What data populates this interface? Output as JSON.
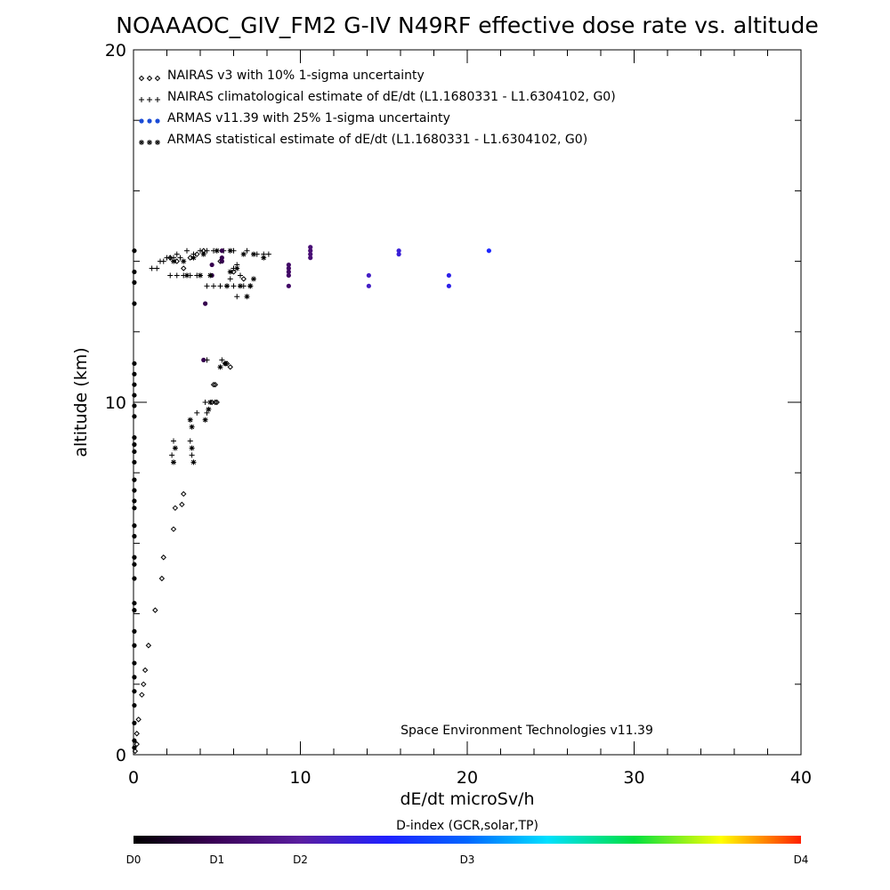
{
  "chart_data": {
    "type": "scatter",
    "title": "NOAAAOC_GIV_FM2 G-IV   N49RF  effective dose rate vs. altitude",
    "xlabel": "dE/dt microSv/h",
    "ylabel": "altitude (km)",
    "xlim": [
      0,
      40
    ],
    "ylim": [
      0,
      20
    ],
    "x_ticks": [
      "0",
      "10",
      "20",
      "30",
      "40"
    ],
    "y_ticks": [
      "0",
      "10",
      "20"
    ],
    "legend_position": "top-left",
    "legend": [
      {
        "symbol": "◇◇◇",
        "label": "NAIRAS v3 with 10% 1-sigma uncertainty"
      },
      {
        "symbol": "+++",
        "label": "NAIRAS climatological estimate of dE/dt (L1.1680331 - L1.6304102, G0)"
      },
      {
        "symbol": "●●●",
        "label": "ARMAS v11.39 with 25% 1-sigma uncertainty"
      },
      {
        "symbol": "***",
        "label": "ARMAS statistical estimate of dE/dt (L1.1680331 - L1.6304102, G0)"
      }
    ],
    "annotation": "Space Environment Technologies v11.39",
    "colorbar": {
      "title": "D-index (GCR,solar,TP)",
      "labels": [
        {
          "text": "D0",
          "value": 0
        },
        {
          "text": "D1",
          "value": 0.25
        },
        {
          "text": "D2",
          "value": 0.5
        },
        {
          "text": "D3",
          "value": 1.0
        },
        {
          "text": "D4",
          "value": 2.0
        }
      ],
      "range": [
        0,
        2
      ]
    },
    "series": [
      {
        "name": "NAIRAS v3 with 10% 1-sigma uncertainty",
        "marker": "diamond",
        "points": [
          [
            0.1,
            0.1
          ],
          [
            0.2,
            0.3
          ],
          [
            0.2,
            0.6
          ],
          [
            0.3,
            1.0
          ],
          [
            0.5,
            1.7
          ],
          [
            0.6,
            2.0
          ],
          [
            0.7,
            2.4
          ],
          [
            0.9,
            3.1
          ],
          [
            1.3,
            4.1
          ],
          [
            1.7,
            5.0
          ],
          [
            1.8,
            5.6
          ],
          [
            2.4,
            6.4
          ],
          [
            2.5,
            7.0
          ],
          [
            2.9,
            7.1
          ],
          [
            3.0,
            7.4
          ],
          [
            4.7,
            10.0
          ],
          [
            4.9,
            10.0
          ],
          [
            5.0,
            10.0
          ],
          [
            4.8,
            10.5
          ],
          [
            4.9,
            10.5
          ],
          [
            5.5,
            11.1
          ],
          [
            5.6,
            11.1
          ],
          [
            5.8,
            11.0
          ],
          [
            2.2,
            14.1
          ],
          [
            2.6,
            14.0
          ],
          [
            3.0,
            13.8
          ],
          [
            3.4,
            14.1
          ],
          [
            3.8,
            14.2
          ],
          [
            4.2,
            14.3
          ],
          [
            5.2,
            14.0
          ],
          [
            6.0,
            13.7
          ],
          [
            6.6,
            13.5
          ]
        ]
      },
      {
        "name": "NAIRAS climatological estimate of dE/dt (L1.1680331 - L1.6304102, G0)",
        "marker": "plus",
        "points": [
          [
            2.3,
            8.5
          ],
          [
            2.4,
            8.9
          ],
          [
            3.4,
            8.9
          ],
          [
            3.5,
            8.5
          ],
          [
            3.8,
            9.7
          ],
          [
            4.4,
            9.7
          ],
          [
            4.3,
            10.0
          ],
          [
            4.4,
            11.2
          ],
          [
            5.3,
            11.2
          ],
          [
            1.1,
            13.8
          ],
          [
            1.4,
            13.8
          ],
          [
            1.6,
            14.0
          ],
          [
            1.8,
            14.0
          ],
          [
            2.0,
            14.1
          ],
          [
            2.2,
            14.1
          ],
          [
            2.4,
            14.1
          ],
          [
            2.6,
            14.2
          ],
          [
            2.8,
            14.1
          ],
          [
            3.2,
            14.3
          ],
          [
            3.6,
            14.2
          ],
          [
            4.0,
            14.3
          ],
          [
            4.4,
            14.3
          ],
          [
            4.8,
            14.3
          ],
          [
            5.4,
            14.3
          ],
          [
            6.0,
            14.3
          ],
          [
            6.8,
            14.3
          ],
          [
            7.4,
            14.2
          ],
          [
            7.8,
            14.2
          ],
          [
            8.1,
            14.2
          ],
          [
            2.2,
            13.6
          ],
          [
            2.6,
            13.6
          ],
          [
            3.0,
            13.6
          ],
          [
            3.4,
            13.6
          ],
          [
            3.8,
            13.6
          ],
          [
            4.4,
            13.3
          ],
          [
            4.8,
            13.3
          ],
          [
            5.2,
            13.3
          ],
          [
            5.6,
            13.3
          ],
          [
            6.0,
            13.3
          ],
          [
            6.6,
            13.3
          ],
          [
            7.0,
            13.3
          ],
          [
            6.0,
            13.8
          ],
          [
            6.4,
            13.6
          ],
          [
            6.2,
            13.9
          ],
          [
            5.8,
            13.5
          ],
          [
            6.2,
            13.0
          ]
        ]
      },
      {
        "name": "ARMAS v11.39 with 25% 1-sigma uncertainty",
        "marker": "circle",
        "points": [
          [
            0.05,
            0.2
          ],
          [
            0.05,
            0.4
          ],
          [
            0.05,
            0.9
          ],
          [
            0.05,
            1.4
          ],
          [
            0.05,
            1.8
          ],
          [
            0.05,
            2.2
          ],
          [
            0.05,
            2.6
          ],
          [
            0.05,
            3.1
          ],
          [
            0.05,
            3.5
          ],
          [
            0.05,
            4.1
          ],
          [
            0.05,
            4.3
          ],
          [
            0.05,
            5.0
          ],
          [
            0.05,
            5.4
          ],
          [
            0.05,
            5.6
          ],
          [
            0.05,
            6.2
          ],
          [
            0.05,
            6.5
          ],
          [
            0.05,
            7.0
          ],
          [
            0.05,
            7.2
          ],
          [
            0.05,
            7.5
          ],
          [
            0.05,
            7.8
          ],
          [
            0.05,
            8.3
          ],
          [
            0.05,
            8.6
          ],
          [
            0.05,
            8.8
          ],
          [
            0.05,
            9.0
          ],
          [
            0.05,
            9.6
          ],
          [
            0.05,
            9.9
          ],
          [
            0.05,
            10.2
          ],
          [
            0.05,
            10.5
          ],
          [
            0.05,
            10.8
          ],
          [
            0.05,
            11.1
          ],
          [
            0.05,
            12.8
          ],
          [
            0.05,
            13.4
          ],
          [
            0.05,
            13.7
          ],
          [
            0.05,
            14.3
          ],
          [
            4.2,
            11.2
          ],
          [
            4.3,
            12.8
          ],
          [
            4.7,
            13.6
          ],
          [
            4.7,
            13.9
          ],
          [
            5.3,
            14.1
          ],
          [
            5.3,
            14.3
          ],
          [
            5.3,
            14.0
          ],
          [
            9.3,
            13.3
          ],
          [
            9.3,
            13.6
          ],
          [
            9.3,
            13.7
          ],
          [
            9.3,
            13.8
          ],
          [
            9.3,
            13.9
          ],
          [
            10.6,
            14.1
          ],
          [
            10.6,
            14.2
          ],
          [
            10.6,
            14.3
          ],
          [
            10.6,
            14.4
          ],
          [
            14.1,
            13.3
          ],
          [
            14.1,
            13.6
          ],
          [
            15.9,
            14.2
          ],
          [
            15.9,
            14.3
          ],
          [
            18.9,
            13.3
          ],
          [
            18.9,
            13.6
          ],
          [
            21.3,
            14.3
          ]
        ],
        "d_index": [
          0,
          0,
          0,
          0,
          0,
          0,
          0,
          0,
          0,
          0,
          0,
          0,
          0,
          0,
          0,
          0,
          0,
          0,
          0,
          0,
          0,
          0,
          0,
          0,
          0,
          0,
          0,
          0,
          0,
          0,
          0,
          0,
          0,
          0,
          0.22,
          0.22,
          0.22,
          0.22,
          0.22,
          0.22,
          0.22,
          0.3,
          0.3,
          0.3,
          0.3,
          0.3,
          0.35,
          0.35,
          0.35,
          0.35,
          0.6,
          0.6,
          0.65,
          0.65,
          0.7,
          0.7,
          0.78
        ]
      },
      {
        "name": "ARMAS statistical estimate of dE/dt (L1.1680331 - L1.6304102, G0)",
        "marker": "asterisk",
        "points": [
          [
            2.5,
            8.7
          ],
          [
            2.4,
            8.3
          ],
          [
            3.6,
            8.3
          ],
          [
            3.5,
            8.7
          ],
          [
            3.4,
            9.5
          ],
          [
            3.5,
            9.3
          ],
          [
            4.3,
            9.5
          ],
          [
            4.5,
            9.8
          ],
          [
            4.6,
            10.0
          ],
          [
            5.2,
            11.0
          ],
          [
            5.5,
            11.1
          ],
          [
            2.4,
            14.0
          ],
          [
            3.0,
            14.0
          ],
          [
            3.6,
            14.1
          ],
          [
            4.2,
            14.2
          ],
          [
            5.0,
            14.3
          ],
          [
            5.8,
            14.3
          ],
          [
            6.6,
            14.2
          ],
          [
            7.2,
            14.2
          ],
          [
            7.8,
            14.1
          ],
          [
            3.2,
            13.6
          ],
          [
            4.0,
            13.6
          ],
          [
            4.6,
            13.6
          ],
          [
            5.6,
            13.3
          ],
          [
            6.4,
            13.3
          ],
          [
            7.0,
            13.3
          ],
          [
            5.8,
            13.7
          ],
          [
            6.2,
            13.8
          ],
          [
            7.2,
            13.5
          ],
          [
            6.8,
            13.0
          ]
        ]
      }
    ]
  }
}
